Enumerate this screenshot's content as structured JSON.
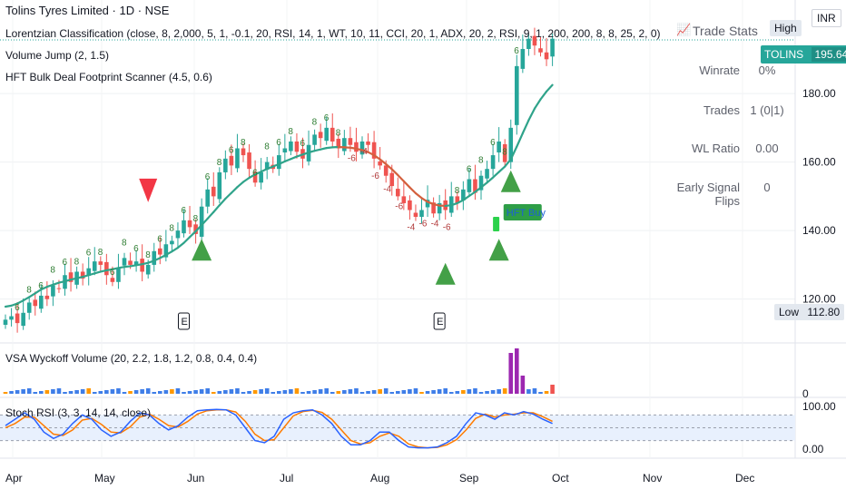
{
  "header": {
    "title": "Tolins Tyres Limited · 1D · NSE",
    "indicator_1": "Lorentzian Classification (close, 8, 2,000, 5, 1, -0.1, 20, RSI, 14, 1, WT, 10, 11, CCI, 20, 1, ADX, 20, 2, RSI, 9, 1, 200, 200, 8, 8, 25, 2, 0)",
    "indicator_2": "Volume Jump (2, 1.5)",
    "indicator_3": "HFT Bulk Deal Footprint Scanner (4.5, 0.6)",
    "vsa": "VSA Wyckoff Volume (20, 2.2, 1.8, 1.2, 0.8, 0.4, 0.4)",
    "stoch": "Stoch RSI (3, 3, 14, 14, close)"
  },
  "badges": {
    "high": "High",
    "currency": "INR",
    "ticker": "TOLINS",
    "last_price": "195.64",
    "low_label": "Low",
    "low_value": "112.80",
    "hft_buy": "HFT Buy",
    "earnings": "E"
  },
  "stats": {
    "title": "Trade Stats",
    "rows": [
      {
        "k": "Winrate",
        "v": "0%"
      },
      {
        "k": "Trades",
        "v": "1 (0|1)"
      },
      {
        "k": "WL Ratio",
        "v": "0.00"
      },
      {
        "k": "Early Signal Flips",
        "v": "0"
      }
    ]
  },
  "colors": {
    "up": "#26a69a",
    "down": "#ef5350",
    "ma": "#2fa38a",
    "kernel_bear": "#d4603e",
    "label_bull": "#2e7d32",
    "label_bear": "#b23b3b",
    "signal_up": "#43a047",
    "signal_down": "#f23645",
    "stoch_k": "#2962ff",
    "stoch_d": "#ff7b00",
    "vol_purple": "#9c27b0"
  },
  "chart_data": {
    "type": "candlestick",
    "price_axis": {
      "ticks": [
        "120.00",
        "140.00",
        "160.00",
        "180.00"
      ],
      "ylim": [
        108,
        202
      ]
    },
    "x_axis": {
      "ticks": [
        "Apr",
        "May",
        "Jun",
        "Jul",
        "Aug",
        "Sep",
        "Oct",
        "Nov",
        "Dec"
      ]
    },
    "series": [
      {
        "name": "close",
        "values": [
          114,
          115,
          113,
          116,
          119,
          118,
          121,
          120,
          124,
          123,
          127,
          125,
          128,
          126,
          129,
          131,
          130,
          127,
          125,
          129,
          132,
          130,
          131,
          128,
          130,
          134,
          133,
          136,
          137,
          140,
          143,
          141,
          139,
          147,
          152,
          150,
          157,
          161,
          159,
          164,
          162,
          158,
          154,
          157,
          160,
          158,
          162,
          164,
          166,
          163,
          161,
          165,
          168,
          167,
          170,
          166,
          164,
          167,
          165,
          163,
          166,
          165,
          161,
          159,
          156,
          153,
          150,
          148,
          146,
          144,
          146,
          149,
          145,
          148,
          146,
          150,
          148,
          152,
          155,
          151,
          156,
          158,
          162,
          166,
          160,
          170,
          188,
          193,
          196,
          194,
          192,
          190,
          196
        ]
      },
      {
        "name": "kernel",
        "values": [
          117.8,
          118.1,
          118.7,
          119.6,
          120.6,
          121.7,
          122.8,
          123.6,
          124.2,
          124.8,
          125.2,
          125.7,
          126.1,
          126.5,
          127.0,
          127.5,
          128.0,
          128.4,
          128.7,
          129.1,
          129.4,
          129.6,
          129.9,
          130.2,
          130.6,
          131.2,
          132.0,
          132.9,
          133.9,
          135.0,
          136.4,
          138.1,
          139.8,
          141.6,
          143.5,
          145.4,
          147.4,
          149.3,
          151.0,
          152.7,
          154.2,
          155.4,
          156.4,
          157.2,
          158.0,
          158.7,
          159.4,
          160.2,
          160.9,
          161.6,
          162.2,
          162.8,
          163.3,
          163.7,
          164.1,
          164.3,
          164.4,
          164.3,
          164.2,
          163.9,
          163.5,
          162.9,
          162.0,
          160.8,
          159.4,
          157.9,
          156.2,
          154.4,
          152.6,
          150.9,
          149.5,
          148.4,
          147.7,
          147.3,
          147.2,
          147.4,
          148.0,
          148.9,
          150.1,
          151.3,
          152.6,
          154.0,
          155.5,
          157.1,
          158.7,
          160.8,
          164.5,
          168.4,
          172.2,
          175.6,
          178.3,
          180.6,
          182.5
        ]
      },
      {
        "name": "stoch_k",
        "values": [
          55,
          70,
          85,
          70,
          40,
          25,
          35,
          60,
          80,
          70,
          45,
          30,
          40,
          65,
          85,
          80,
          60,
          45,
          55,
          75,
          90,
          92,
          93,
          92,
          80,
          50,
          20,
          15,
          30,
          70,
          85,
          90,
          92,
          80,
          60,
          30,
          10,
          10,
          20,
          40,
          40,
          20,
          5,
          3,
          3,
          5,
          15,
          30,
          60,
          85,
          80,
          70,
          85,
          80,
          88,
          82,
          70,
          60
        ]
      },
      {
        "name": "stoch_d",
        "values": [
          50,
          60,
          75,
          75,
          55,
          35,
          32,
          45,
          68,
          72,
          58,
          40,
          38,
          52,
          75,
          82,
          70,
          55,
          52,
          65,
          82,
          90,
          92,
          92,
          87,
          65,
          35,
          20,
          22,
          50,
          78,
          88,
          91,
          86,
          70,
          45,
          20,
          12,
          15,
          30,
          38,
          30,
          12,
          5,
          3,
          4,
          10,
          22,
          45,
          72,
          82,
          75,
          80,
          82,
          85,
          85,
          76,
          65
        ]
      }
    ],
    "signals": {
      "buy": [
        {
          "x": 33,
          "y": 136
        },
        {
          "x": 74,
          "y": 129
        },
        {
          "x": 83,
          "y": 136
        },
        {
          "x": 85,
          "y": 156
        }
      ],
      "sell": [
        {
          "x": 24,
          "y": 152
        }
      ]
    },
    "volume_spikes": [
      {
        "x": 85,
        "value": 9
      },
      {
        "x": 86,
        "value": 10
      },
      {
        "x": 87,
        "value": 4
      },
      {
        "x": 92,
        "value": 2
      }
    ],
    "stoch_axis": {
      "ticks": [
        "0.00",
        "100.00"
      ],
      "ylim": [
        0,
        100
      ]
    },
    "volume_axis": {
      "ticks": [
        "0"
      ]
    }
  }
}
